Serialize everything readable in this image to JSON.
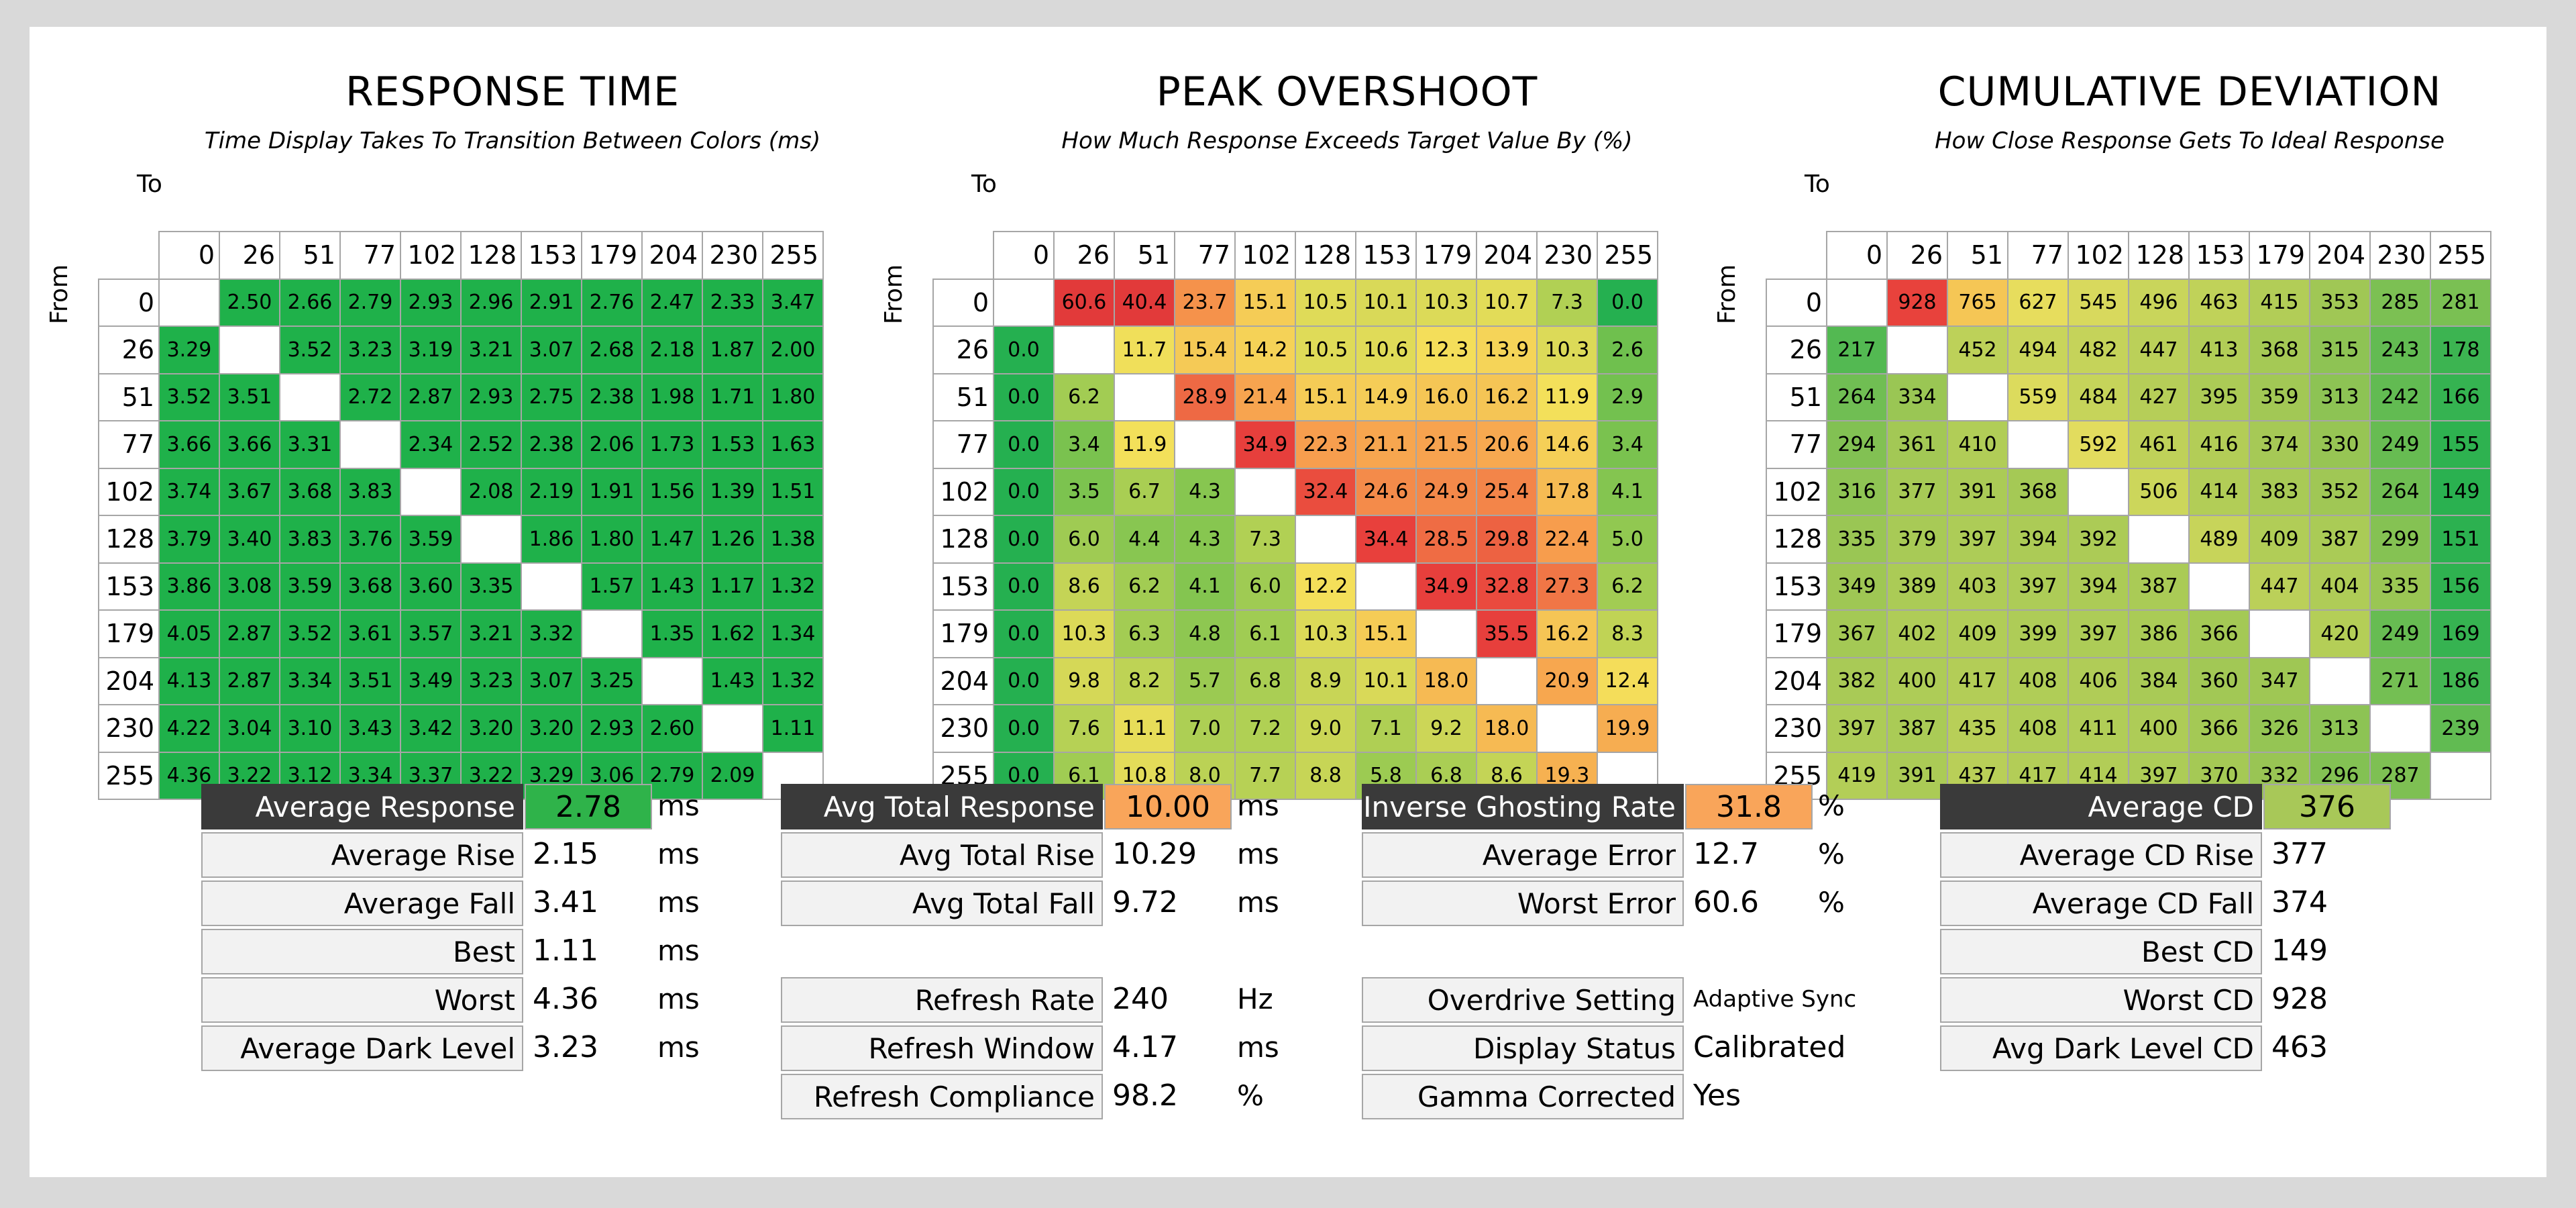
{
  "chart_data": [
    {
      "type": "heatmap",
      "title": "RESPONSE TIME",
      "subtitle": "Time Display Takes To Transition Between Colors (ms)",
      "xlabel": "To",
      "ylabel": "From",
      "levels": [
        "0",
        "26",
        "51",
        "77",
        "102",
        "128",
        "153",
        "179",
        "204",
        "230",
        "255"
      ],
      "values": [
        [
          null,
          "2.50",
          "2.66",
          "2.79",
          "2.93",
          "2.96",
          "2.91",
          "2.76",
          "2.47",
          "2.33",
          "3.47"
        ],
        [
          "3.29",
          null,
          "3.52",
          "3.23",
          "3.19",
          "3.21",
          "3.07",
          "2.68",
          "2.18",
          "1.87",
          "2.00"
        ],
        [
          "3.52",
          "3.51",
          null,
          "2.72",
          "2.87",
          "2.93",
          "2.75",
          "2.38",
          "1.98",
          "1.71",
          "1.80"
        ],
        [
          "3.66",
          "3.66",
          "3.31",
          null,
          "2.34",
          "2.52",
          "2.38",
          "2.06",
          "1.73",
          "1.53",
          "1.63"
        ],
        [
          "3.74",
          "3.67",
          "3.68",
          "3.83",
          null,
          "2.08",
          "2.19",
          "1.91",
          "1.56",
          "1.39",
          "1.51"
        ],
        [
          "3.79",
          "3.40",
          "3.83",
          "3.76",
          "3.59",
          null,
          "1.86",
          "1.80",
          "1.47",
          "1.26",
          "1.38"
        ],
        [
          "3.86",
          "3.08",
          "3.59",
          "3.68",
          "3.60",
          "3.35",
          null,
          "1.57",
          "1.43",
          "1.17",
          "1.32"
        ],
        [
          "4.05",
          "2.87",
          "3.52",
          "3.61",
          "3.57",
          "3.21",
          "3.32",
          null,
          "1.35",
          "1.62",
          "1.34"
        ],
        [
          "4.13",
          "2.87",
          "3.34",
          "3.51",
          "3.49",
          "3.23",
          "3.07",
          "3.25",
          null,
          "1.43",
          "1.32"
        ],
        [
          "4.22",
          "3.04",
          "3.10",
          "3.43",
          "3.42",
          "3.20",
          "3.20",
          "2.93",
          "2.60",
          null,
          "1.11"
        ],
        [
          "4.36",
          "3.22",
          "3.12",
          "3.34",
          "3.37",
          "3.22",
          "3.29",
          "3.06",
          "2.79",
          "2.09",
          null
        ]
      ]
    },
    {
      "type": "heatmap",
      "title": "PEAK OVERSHOOT",
      "subtitle": "How Much Response Exceeds Target Value By (%)",
      "xlabel": "To",
      "ylabel": "From",
      "levels": [
        "0",
        "26",
        "51",
        "77",
        "102",
        "128",
        "153",
        "179",
        "204",
        "230",
        "255"
      ],
      "values": [
        [
          null,
          "60.6",
          "40.4",
          "23.7",
          "15.1",
          "10.5",
          "10.1",
          "10.3",
          "10.7",
          "7.3",
          "0.0"
        ],
        [
          "0.0",
          null,
          "11.7",
          "15.4",
          "14.2",
          "10.5",
          "10.6",
          "12.3",
          "13.9",
          "10.3",
          "2.6"
        ],
        [
          "0.0",
          "6.2",
          null,
          "28.9",
          "21.4",
          "15.1",
          "14.9",
          "16.0",
          "16.2",
          "11.9",
          "2.9"
        ],
        [
          "0.0",
          "3.4",
          "11.9",
          null,
          "34.9",
          "22.3",
          "21.1",
          "21.5",
          "20.6",
          "14.6",
          "3.4"
        ],
        [
          "0.0",
          "3.5",
          "6.7",
          "4.3",
          null,
          "32.4",
          "24.6",
          "24.9",
          "25.4",
          "17.8",
          "4.1"
        ],
        [
          "0.0",
          "6.0",
          "4.4",
          "4.3",
          "7.3",
          null,
          "34.4",
          "28.5",
          "29.8",
          "22.4",
          "5.0"
        ],
        [
          "0.0",
          "8.6",
          "6.2",
          "4.1",
          "6.0",
          "12.2",
          null,
          "34.9",
          "32.8",
          "27.3",
          "6.2"
        ],
        [
          "0.0",
          "10.3",
          "6.3",
          "4.8",
          "6.1",
          "10.3",
          "15.1",
          null,
          "35.5",
          "16.2",
          "8.3"
        ],
        [
          "0.0",
          "9.8",
          "8.2",
          "5.7",
          "6.8",
          "8.9",
          "10.1",
          "18.0",
          null,
          "20.9",
          "12.4"
        ],
        [
          "0.0",
          "7.6",
          "11.1",
          "7.0",
          "7.2",
          "9.0",
          "7.1",
          "9.2",
          "18.0",
          null,
          "19.9"
        ],
        [
          "0.0",
          "6.1",
          "10.8",
          "8.0",
          "7.7",
          "8.8",
          "5.8",
          "6.8",
          "8.6",
          "19.3",
          null
        ]
      ]
    },
    {
      "type": "heatmap",
      "title": "CUMULATIVE DEVIATION",
      "subtitle": "How Close Response Gets To Ideal Response",
      "xlabel": "To",
      "ylabel": "From",
      "levels": [
        "0",
        "26",
        "51",
        "77",
        "102",
        "128",
        "153",
        "179",
        "204",
        "230",
        "255"
      ],
      "values": [
        [
          null,
          "928",
          "765",
          "627",
          "545",
          "496",
          "463",
          "415",
          "353",
          "285",
          "281"
        ],
        [
          "217",
          null,
          "452",
          "494",
          "482",
          "447",
          "413",
          "368",
          "315",
          "243",
          "178"
        ],
        [
          "264",
          "334",
          null,
          "559",
          "484",
          "427",
          "395",
          "359",
          "313",
          "242",
          "166"
        ],
        [
          "294",
          "361",
          "410",
          null,
          "592",
          "461",
          "416",
          "374",
          "330",
          "249",
          "155"
        ],
        [
          "316",
          "377",
          "391",
          "368",
          null,
          "506",
          "414",
          "383",
          "352",
          "264",
          "149"
        ],
        [
          "335",
          "379",
          "397",
          "394",
          "392",
          null,
          "489",
          "409",
          "387",
          "299",
          "151"
        ],
        [
          "349",
          "389",
          "403",
          "397",
          "394",
          "387",
          null,
          "447",
          "404",
          "335",
          "156"
        ],
        [
          "367",
          "402",
          "409",
          "399",
          "397",
          "386",
          "366",
          null,
          "420",
          "249",
          "169"
        ],
        [
          "382",
          "400",
          "417",
          "408",
          "406",
          "384",
          "360",
          "347",
          null,
          "271",
          "186"
        ],
        [
          "397",
          "387",
          "435",
          "408",
          "411",
          "400",
          "366",
          "326",
          "313",
          null,
          "239"
        ],
        [
          "419",
          "391",
          "437",
          "417",
          "414",
          "397",
          "370",
          "332",
          "296",
          "287",
          null
        ]
      ]
    }
  ],
  "stats": {
    "response": [
      {
        "label": "Average Response",
        "value": "2.78",
        "unit": "ms",
        "highlight": "#2fb34a"
      },
      {
        "label": "Average Rise",
        "value": "2.15",
        "unit": "ms"
      },
      {
        "label": "Average Fall",
        "value": "3.41",
        "unit": "ms"
      },
      {
        "label": "Best",
        "value": "1.11",
        "unit": "ms"
      },
      {
        "label": "Worst",
        "value": "4.36",
        "unit": "ms"
      },
      {
        "label": "Average Dark Level",
        "value": "3.23",
        "unit": "ms"
      }
    ],
    "total": [
      {
        "label": "Avg Total Response",
        "value": "10.00",
        "unit": "ms",
        "highlight": "#f9a55a"
      },
      {
        "label": "Avg Total Rise",
        "value": "10.29",
        "unit": "ms"
      },
      {
        "label": "Avg Total Fall",
        "value": "9.72",
        "unit": "ms"
      }
    ],
    "refresh": [
      {
        "label": "Refresh Rate",
        "value": "240",
        "unit": "Hz"
      },
      {
        "label": "Refresh Window",
        "value": "4.17",
        "unit": "ms"
      },
      {
        "label": "Refresh Compliance",
        "value": "98.2",
        "unit": "%"
      }
    ],
    "overshoot": [
      {
        "label": "Inverse Ghosting Rate",
        "value": "31.8",
        "unit": "%",
        "highlight": "#f9a55a"
      },
      {
        "label": "Average Error",
        "value": "12.7",
        "unit": "%"
      },
      {
        "label": "Worst Error",
        "value": "60.6",
        "unit": "%"
      }
    ],
    "settings": [
      {
        "label": "Overdrive Setting",
        "value": "Adaptive Sync",
        "unit": "",
        "small": true
      },
      {
        "label": "Display Status",
        "value": "Calibrated",
        "unit": ""
      },
      {
        "label": "Gamma Corrected",
        "value": "Yes",
        "unit": ""
      }
    ],
    "cd": [
      {
        "label": "Average CD",
        "value": "376",
        "unit": "",
        "highlight": "#a8c858"
      },
      {
        "label": "Average CD Rise",
        "value": "377",
        "unit": ""
      },
      {
        "label": "Average CD Fall",
        "value": "374",
        "unit": ""
      },
      {
        "label": "Best CD",
        "value": "149",
        "unit": ""
      },
      {
        "label": "Worst CD",
        "value": "928",
        "unit": ""
      },
      {
        "label": "Avg Dark Level CD",
        "value": "463",
        "unit": ""
      }
    ]
  },
  "colors": {
    "rt_green": "#1fb14a",
    "scale_green": "#25b050",
    "scale_yellow": "#f4e05a",
    "scale_orange": "#f7a04e",
    "scale_red": "#e8403c"
  }
}
